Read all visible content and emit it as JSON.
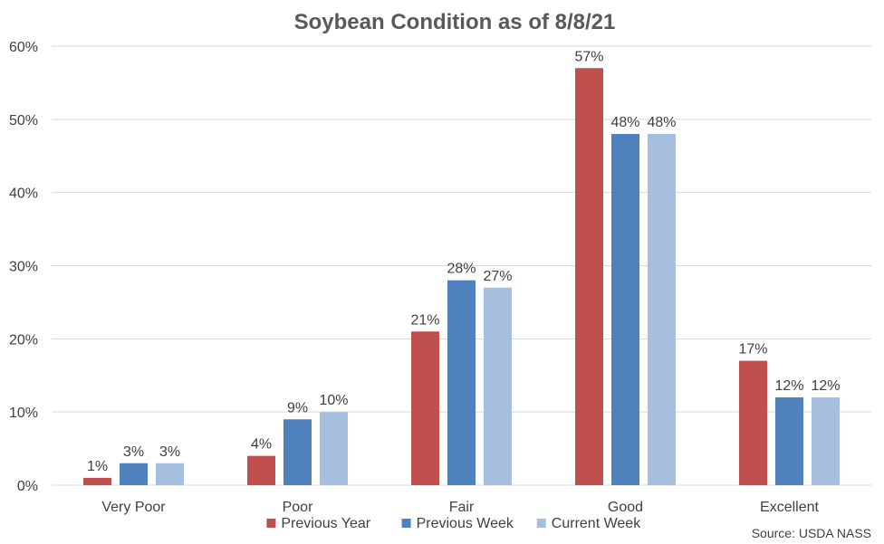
{
  "chart_data": {
    "type": "bar",
    "title": "Soybean Condition as of 8/8/21",
    "categories": [
      "Very Poor",
      "Poor",
      "Fair",
      "Good",
      "Excellent"
    ],
    "series": [
      {
        "name": "Previous Year",
        "color": "#c0504d",
        "values": [
          1,
          4,
          21,
          57,
          17
        ]
      },
      {
        "name": "Previous Week",
        "color": "#4f81bd",
        "values": [
          3,
          9,
          28,
          48,
          12
        ]
      },
      {
        "name": "Current Week",
        "color": "#a7bfde",
        "values": [
          3,
          10,
          27,
          48,
          12
        ]
      }
    ],
    "value_suffix": "%",
    "ylim": [
      0,
      60
    ],
    "yticks": [
      0,
      10,
      20,
      30,
      40,
      50,
      60
    ],
    "ytick_labels": [
      "0%",
      "10%",
      "20%",
      "30%",
      "40%",
      "50%",
      "60%"
    ],
    "grid": true,
    "legend": "bottom-center",
    "source": "Source: USDA NASS"
  }
}
